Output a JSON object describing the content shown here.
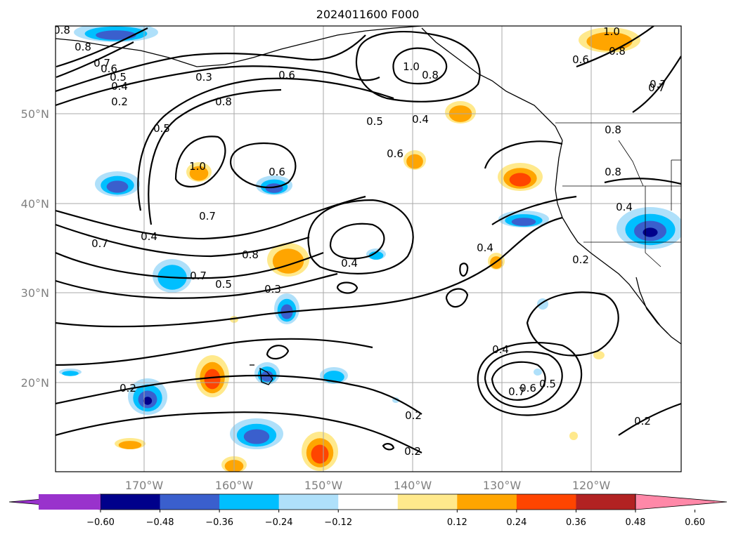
{
  "title": "2024011600 F000",
  "lat_labels": [
    "50°N",
    "40°N",
    "30°N",
    "20°N"
  ],
  "lon_labels": [
    "170°W",
    "160°W",
    "150°W",
    "140°W",
    "130°W",
    "120°W"
  ],
  "colorbar": {
    "ticks": [
      "−0.60",
      "−0.48",
      "−0.36",
      "−0.24",
      "−0.12",
      "0.12",
      "0.24",
      "0.36",
      "0.48",
      "0.60"
    ],
    "colors": [
      "#9932cc",
      "#00008b",
      "#3a5fcd",
      "#00bfff",
      "#afe0fa",
      "#ffffff",
      "#ffe98c",
      "#ffa500",
      "#ff4500",
      "#b22222",
      "#ff88a8"
    ]
  },
  "contour_labels": [
    "0.8",
    "0.8",
    "0.7",
    "0.6",
    "0.5",
    "0.4",
    "0.2",
    "0.3",
    "0.6",
    "1.0",
    "0.8",
    "1.0",
    "0.8",
    "0.6",
    "0.7",
    "0.8",
    "0.5",
    "0.4",
    "0.6",
    "1.0",
    "0.6",
    "0.5",
    "0.8",
    "0.8",
    "0.7",
    "0.4",
    "0.7",
    "0.7",
    "0.5",
    "0.3",
    "0.4",
    "0.4",
    "0.8",
    "0.2",
    "0.4",
    "0.2",
    "0.7",
    "0.6",
    "0.5",
    "0.2",
    "0.2",
    "0.2",
    "0.7",
    "0.4"
  ],
  "shading_colors": {
    "neg_light": "#afe0fa",
    "neg_mid": "#00bfff",
    "neg_dark": "#3a5fcd",
    "neg_darkest": "#00008b",
    "pos_light": "#ffe98c",
    "pos_mid": "#ffa500",
    "pos_dark": "#ff4500"
  }
}
